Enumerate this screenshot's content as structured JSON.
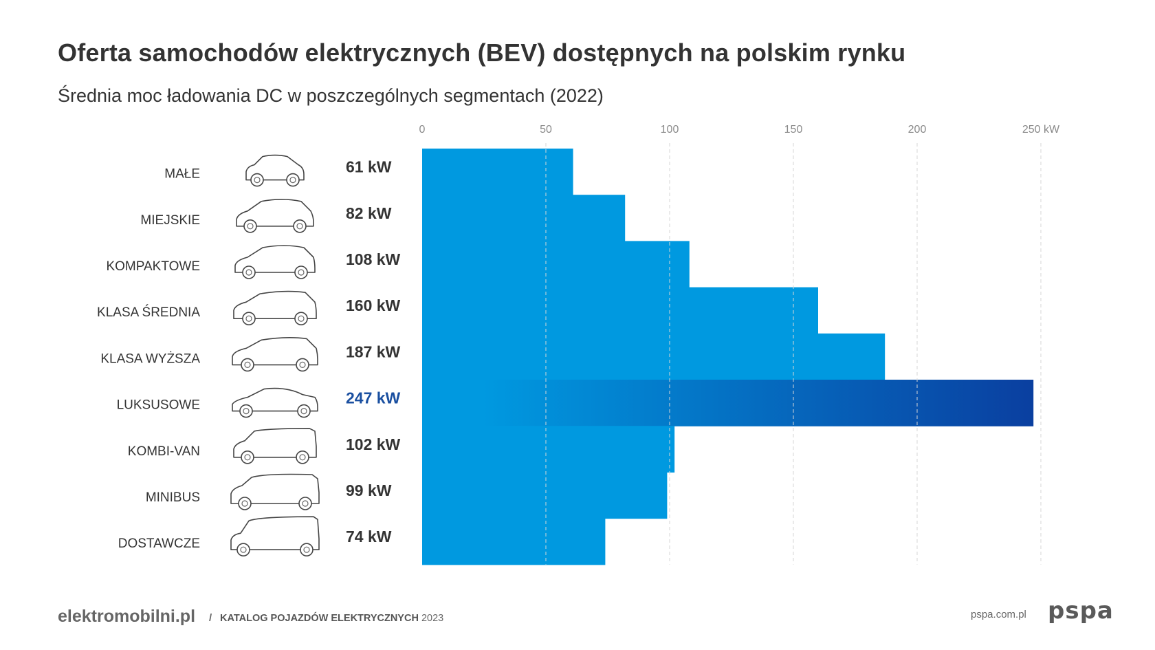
{
  "title": "Oferta samochodów elektrycznych (BEV) dostępnych na polskim rynku",
  "subtitle": "Średnia moc ładowania DC w poszczególnych segmentach (2022)",
  "colors": {
    "bar": "#0099e0",
    "highlight_start": "#0099e0",
    "highlight_end": "#0a3fa0",
    "highlight_text": "#1a4fa0",
    "text": "#333333",
    "grid": "#d6d6d6",
    "tick": "#8a8a8a"
  },
  "chart_data": {
    "type": "bar",
    "orientation": "horizontal",
    "categories": [
      "MAŁE",
      "MIEJSKIE",
      "KOMPAKTOWE",
      "KLASA ŚREDNIA",
      "KLASA WYŻSZA",
      "LUKSUSOWE",
      "KOMBI-VAN",
      "MINIBUS",
      "DOSTAWCZE"
    ],
    "values": [
      61,
      82,
      108,
      160,
      187,
      247,
      102,
      99,
      74
    ],
    "value_labels": [
      "61 kW",
      "82 kW",
      "108 kW",
      "160 kW",
      "187 kW",
      "247 kW",
      "102 kW",
      "99 kW",
      "74 kW"
    ],
    "highlight_index": 5,
    "xlim": [
      0,
      250
    ],
    "ticks": [
      0,
      50,
      100,
      150,
      200,
      250
    ],
    "tick_labels": [
      "0",
      "50",
      "100",
      "150",
      "200",
      "250 kW"
    ],
    "grid": true,
    "icons": [
      "microcar-icon",
      "city-car-icon",
      "compact-car-icon",
      "mid-suv-icon",
      "upper-suv-icon",
      "luxury-sedan-icon",
      "combi-van-icon",
      "minibus-icon",
      "delivery-van-icon"
    ]
  },
  "footer": {
    "brand": "elektromobilni.pl",
    "separator": "/",
    "catalog": "KATALOG POJAZDÓW ELEKTRYCZNYCH",
    "catalog_year": "2023",
    "url": "pspa.com.pl",
    "logo": "pspa"
  }
}
